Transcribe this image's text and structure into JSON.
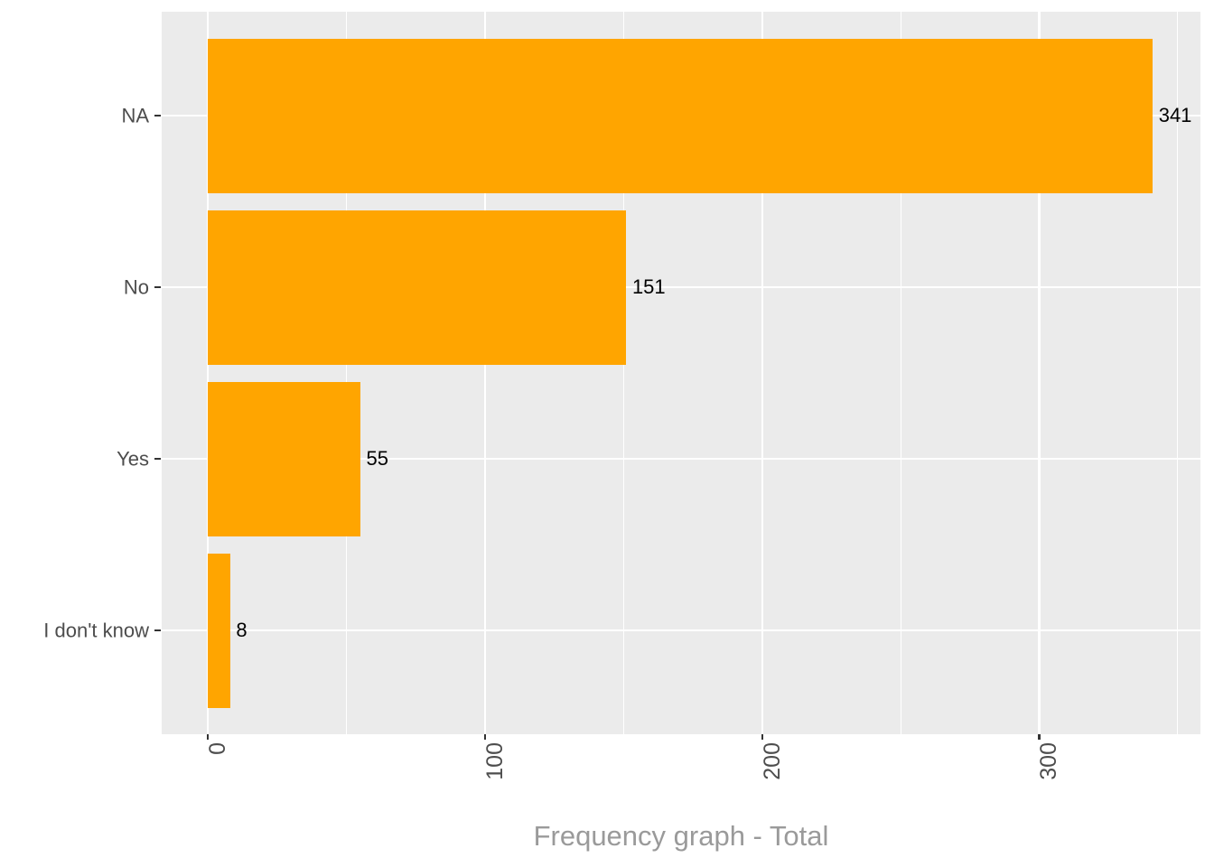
{
  "chart_data": {
    "type": "bar",
    "orientation": "horizontal",
    "title": "Frequency graph - Total",
    "categories": [
      "NA",
      "No",
      "Yes",
      "I don't know"
    ],
    "values": [
      341,
      151,
      55,
      8
    ],
    "bar_labels": [
      "341",
      "151",
      "55",
      "8"
    ],
    "x_axis": {
      "tick_labels": [
        "0",
        "100",
        "200",
        "300"
      ],
      "tick_values": [
        0,
        100,
        200,
        300
      ],
      "minor_tick_values": [
        50,
        150,
        250,
        350
      ],
      "range": [
        -17,
        358
      ],
      "label_rotation_deg": 90
    },
    "y_axis": {
      "tick_labels": [
        "NA",
        "No",
        "Yes",
        "I don't know"
      ]
    },
    "legend": "none",
    "grid": "on",
    "colors": {
      "bar_fill": "#FFA500",
      "panel_background": "#EBEBEB",
      "grid_line": "#FFFFFF",
      "axis_text": "#4D4D4D",
      "tick_mark": "#333333",
      "value_label": "#000000",
      "title": "#9A9A9A",
      "figure_background": "#FFFFFF"
    }
  }
}
